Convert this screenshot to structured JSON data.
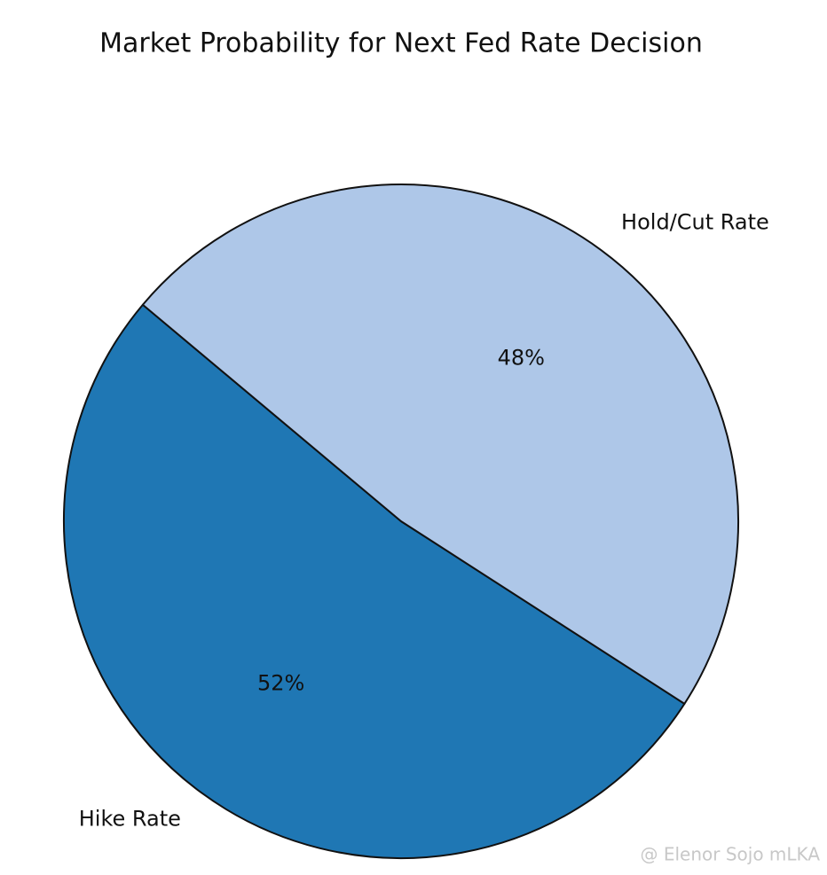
{
  "chart_data": {
    "type": "pie",
    "title": "Market Probability for Next Fed Rate Decision",
    "categories": [
      "Hike Rate",
      "Hold/Cut Rate"
    ],
    "values": [
      52,
      48
    ],
    "value_labels": [
      "52%",
      "48%"
    ],
    "colors": [
      "#1f77b4",
      "#aec7e8"
    ]
  },
  "watermark": "@ Elenor Sojo mLKA"
}
